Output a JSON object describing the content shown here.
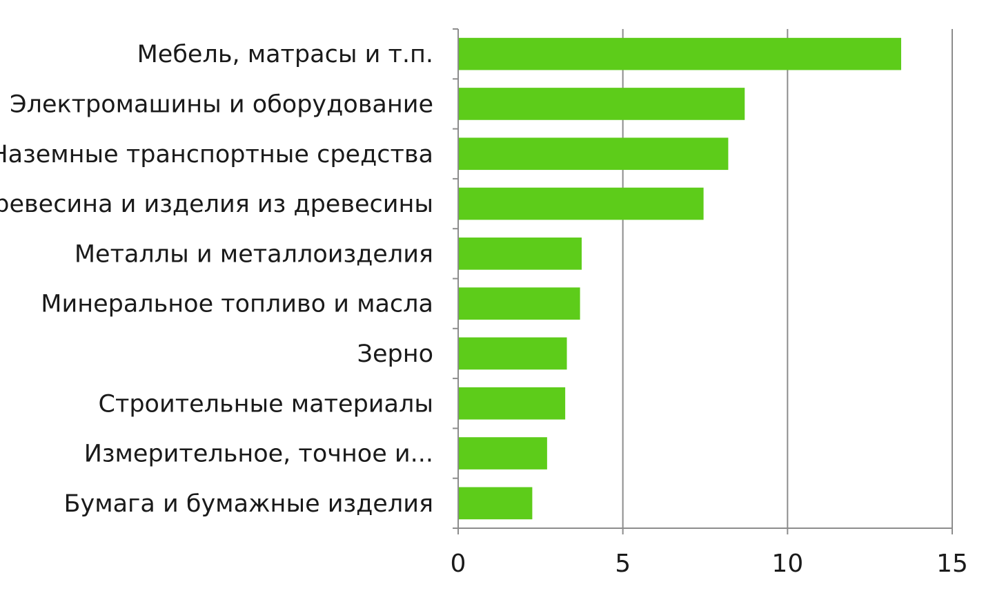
{
  "chart_data": {
    "type": "bar",
    "orientation": "horizontal",
    "categories": [
      "Мебель, матрасы и т.п.",
      "Электромашины и оборудование",
      "Наземные транспортные средства",
      "Древесина и изделия из древесины",
      "Металлы и металлоизделия",
      "Минеральное топливо и масла",
      "Зерно",
      "Строительные материалы",
      "Измерительное, точное и...",
      "Бумага и бумажные изделия"
    ],
    "values": [
      13.45,
      8.7,
      8.2,
      7.45,
      3.75,
      3.7,
      3.3,
      3.25,
      2.7,
      2.25
    ],
    "xlim": [
      0,
      15
    ],
    "xticks": [
      "0",
      "5",
      "10",
      "15"
    ],
    "grid": "vertical",
    "bar_color": "#5dcc1a",
    "grid_color": "#8c8c8c",
    "title": "",
    "xlabel": "",
    "ylabel": ""
  }
}
